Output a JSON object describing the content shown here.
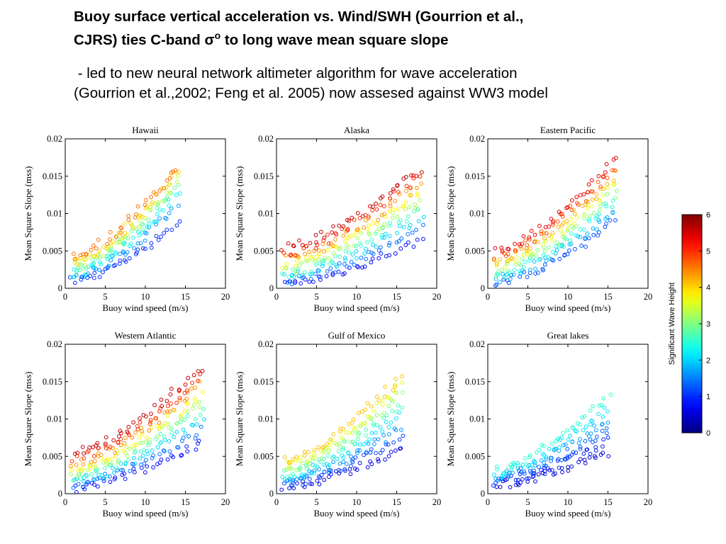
{
  "heading": {
    "line1": "Buoy surface vertical acceleration vs. Wind/SWH (Gourrion et al.,",
    "line2_prefix": "CJRS) ties C-band ",
    "sigma": "σ",
    "sigma_sup": "o",
    "line2_suffix": " to long wave mean square slope"
  },
  "subheading": {
    "line1": " - led to new neural network altimeter algorithm for wave acceleration",
    "line2": "(Gourrion et al.,2002; Feng et al. 2005) now assesed against WW3 model"
  },
  "chart_data": [
    {
      "type": "scatter",
      "title": "Hawaii",
      "xlabel": "Buoy wind speed (m/s)",
      "ylabel": "Mean Square Slope (mss)",
      "xlim": [
        0,
        20
      ],
      "ylim": [
        0,
        0.02
      ],
      "xticks": [
        "0",
        "5",
        "10",
        "15",
        "20"
      ],
      "yticks": [
        "0",
        "0.005",
        "0.01",
        "0.015",
        "0.02"
      ],
      "color_variable": "Significant Wave Height",
      "swh_levels": [
        1.0,
        1.6,
        2.2,
        2.8,
        3.4,
        4.0,
        4.6
      ],
      "wind_range": [
        1,
        14
      ],
      "intercepts": [
        0.001,
        0.0015,
        0.002,
        0.0025,
        0.003,
        0.0036,
        0.0043
      ],
      "end_values": [
        0.0088,
        0.0108,
        0.0125,
        0.0137,
        0.0147,
        0.0155,
        0.0163
      ]
    },
    {
      "type": "scatter",
      "title": "Alaska",
      "xlabel": "Buoy wind speed (m/s)",
      "ylabel": "Mean Square Slope (mss)",
      "xlim": [
        0,
        20
      ],
      "ylim": [
        0,
        0.02
      ],
      "xticks": [
        "0",
        "5",
        "10",
        "15",
        "20"
      ],
      "yticks": [
        "0",
        "0.005",
        "0.01",
        "0.015",
        "0.02"
      ],
      "color_variable": "Significant Wave Height",
      "swh_levels": [
        0.8,
        1.4,
        2.0,
        2.6,
        3.2,
        3.8,
        4.4,
        5.0,
        5.6
      ],
      "wind_range": [
        1,
        18
      ],
      "intercepts": [
        0.0005,
        0.001,
        0.0015,
        0.002,
        0.0026,
        0.0032,
        0.0039,
        0.0046,
        0.0054
      ],
      "end_values": [
        0.0065,
        0.008,
        0.0095,
        0.0108,
        0.012,
        0.0132,
        0.0143,
        0.0153,
        0.016
      ]
    },
    {
      "type": "scatter",
      "title": "Eastern Pacific",
      "xlabel": "Buoy wind speed (m/s)",
      "ylabel": "Mean Square Slope (mss)",
      "xlim": [
        0,
        20
      ],
      "ylim": [
        0,
        0.02
      ],
      "xticks": [
        "0",
        "5",
        "10",
        "15",
        "20"
      ],
      "yticks": [
        "0",
        "0.005",
        "0.01",
        "0.015",
        "0.02"
      ],
      "color_variable": "Significant Wave Height",
      "swh_levels": [
        1.2,
        1.8,
        2.4,
        3.0,
        3.6,
        4.2,
        4.8,
        5.4
      ],
      "wind_range": [
        1,
        16
      ],
      "intercepts": [
        0.0008,
        0.0013,
        0.0018,
        0.0023,
        0.0029,
        0.0036,
        0.0043,
        0.005
      ],
      "end_values": [
        0.009,
        0.0105,
        0.0118,
        0.013,
        0.0142,
        0.0153,
        0.0163,
        0.0173
      ]
    },
    {
      "type": "scatter",
      "title": "Western Atlantic",
      "xlabel": "Buoy wind speed (m/s)",
      "ylabel": "Mean Square Slope (mss)",
      "xlim": [
        0,
        20
      ],
      "ylim": [
        0,
        0.02
      ],
      "xticks": [
        "0",
        "5",
        "10",
        "15",
        "20"
      ],
      "yticks": [
        "0",
        "0.005",
        "0.01",
        "0.015",
        "0.02"
      ],
      "color_variable": "Significant Wave Height",
      "swh_levels": [
        0.8,
        1.4,
        2.0,
        2.6,
        3.2,
        3.8,
        4.4,
        5.0,
        5.6
      ],
      "wind_range": [
        1,
        17
      ],
      "intercepts": [
        0.0006,
        0.0011,
        0.0016,
        0.0021,
        0.0027,
        0.0033,
        0.004,
        0.0047,
        0.0055
      ],
      "end_values": [
        0.007,
        0.0085,
        0.01,
        0.0113,
        0.0125,
        0.0137,
        0.0148,
        0.0158,
        0.0168
      ]
    },
    {
      "type": "scatter",
      "title": "Gulf of Mexico",
      "xlabel": "Buoy wind speed (m/s)",
      "ylabel": "Mean Square Slope (mss)",
      "xlim": [
        0,
        20
      ],
      "ylim": [
        0,
        0.02
      ],
      "xticks": [
        "0",
        "5",
        "10",
        "15",
        "20"
      ],
      "yticks": [
        "0",
        "0.005",
        "0.01",
        "0.015",
        "0.02"
      ],
      "color_variable": "Significant Wave Height",
      "swh_levels": [
        0.6,
        1.1,
        1.6,
        2.1,
        2.6,
        3.1,
        3.6,
        4.1
      ],
      "wind_range": [
        1,
        15.5
      ],
      "intercepts": [
        0.0008,
        0.0012,
        0.0016,
        0.0021,
        0.0026,
        0.0032,
        0.0038,
        0.0045
      ],
      "end_values": [
        0.006,
        0.0075,
        0.009,
        0.0105,
        0.012,
        0.0135,
        0.0148,
        0.0158
      ]
    },
    {
      "type": "scatter",
      "title": "Great lakes",
      "xlabel": "Buoy wind speed (m/s)",
      "ylabel": "Mean Square Slope (mss)",
      "xlim": [
        0,
        20
      ],
      "ylim": [
        0,
        0.02
      ],
      "xticks": [
        "0",
        "5",
        "10",
        "15",
        "20"
      ],
      "yticks": [
        "0",
        "0.005",
        "0.01",
        "0.015",
        "0.02"
      ],
      "color_variable": "Significant Wave Height",
      "swh_levels": [
        0.5,
        0.9,
        1.3,
        1.7,
        2.1,
        2.5
      ],
      "wind_range": [
        1,
        15
      ],
      "intercepts": [
        0.0012,
        0.0016,
        0.002,
        0.0024,
        0.0028,
        0.0032
      ],
      "end_values": [
        0.0055,
        0.007,
        0.0085,
        0.01,
        0.0115,
        0.013
      ]
    }
  ],
  "colorbar": {
    "label": "Significant Wave Height",
    "min": 0,
    "max": 6,
    "ticks": [
      "0",
      "1",
      "2",
      "3",
      "4",
      "5",
      "6"
    ],
    "colormap": [
      "#00008f",
      "#0000ff",
      "#00ffff",
      "#ffff00",
      "#ff0000",
      "#800000"
    ]
  }
}
